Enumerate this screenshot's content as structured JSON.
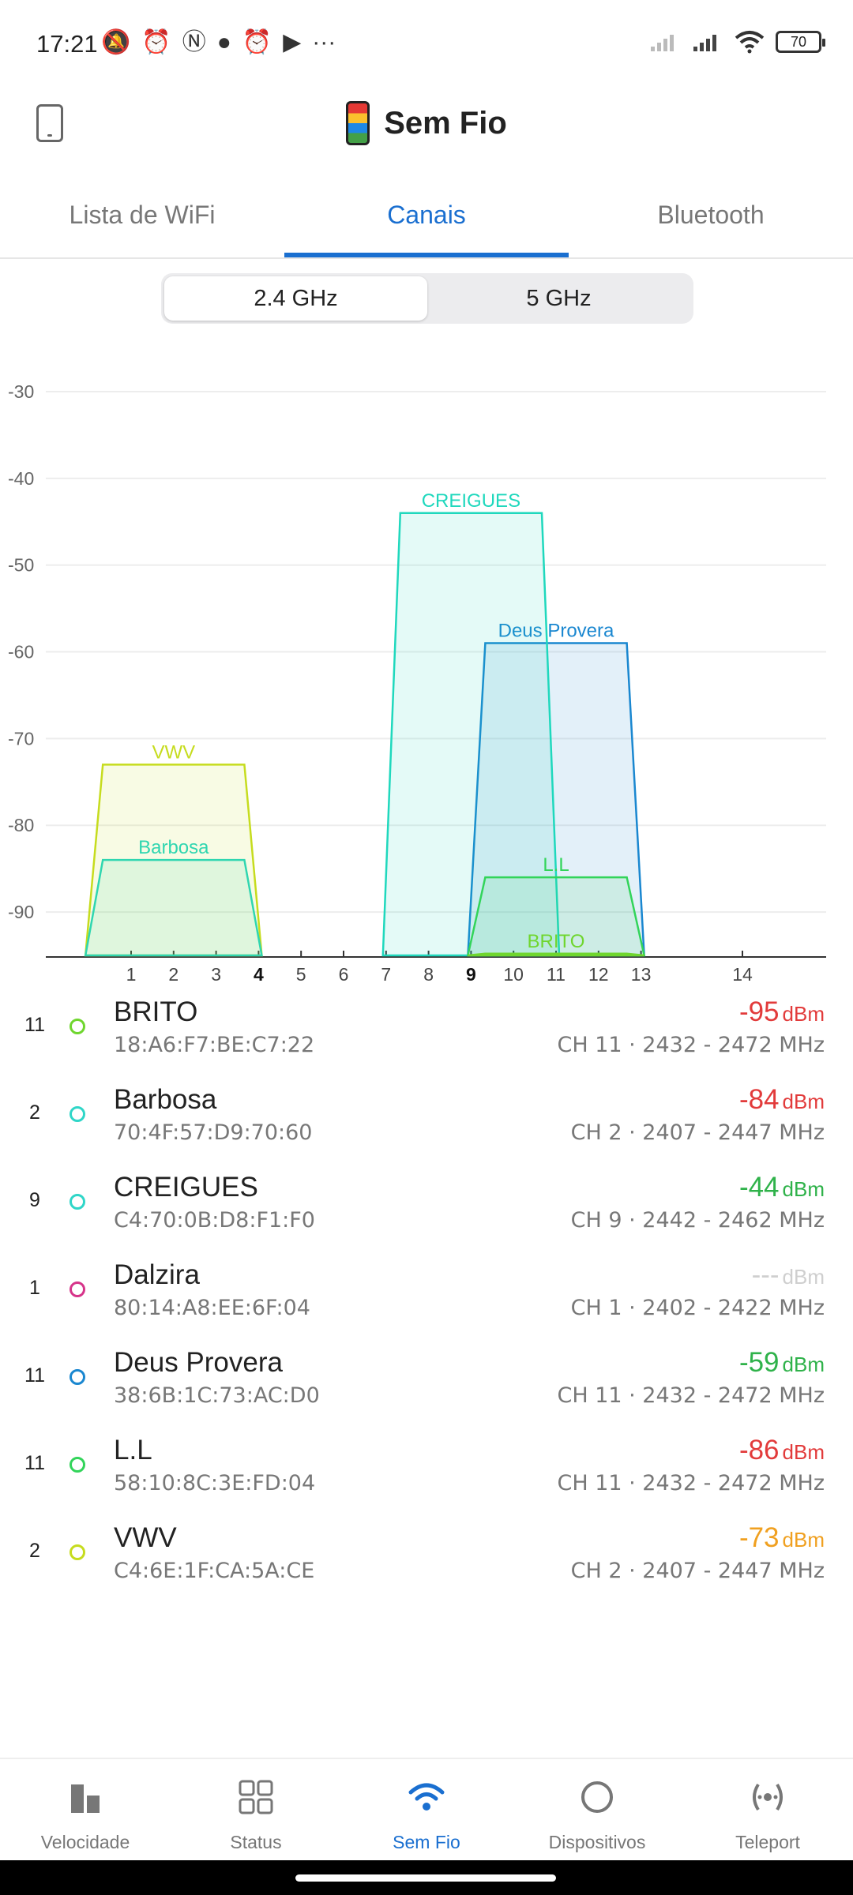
{
  "status_bar": {
    "time": "17:21",
    "left_icons": [
      "mute-icon",
      "alarm-icon",
      "nfc-icon",
      "chat-icon",
      "alarm-icon",
      "youtube-icon",
      "more-icon"
    ],
    "battery": "70"
  },
  "app_bar": {
    "title": "Sem Fio"
  },
  "tabs": [
    {
      "label": "Lista de WiFi",
      "active": false
    },
    {
      "label": "Canais",
      "active": true
    },
    {
      "label": "Bluetooth",
      "active": false
    }
  ],
  "band_toggle": {
    "options": [
      {
        "label": "2.4 GHz",
        "active": true
      },
      {
        "label": "5 GHz",
        "active": false
      }
    ]
  },
  "chart_data": {
    "type": "area",
    "y_ticks": [
      "-30",
      "-40",
      "-50",
      "-60",
      "-70",
      "-80",
      "-90"
    ],
    "ylim": [
      -95,
      -30
    ],
    "x_ticks": [
      "1",
      "2",
      "3",
      "4",
      "5",
      "6",
      "7",
      "8",
      "9",
      "10",
      "11",
      "12",
      "13",
      "14"
    ],
    "bold_x_ticks": [
      "4",
      "9"
    ],
    "series": [
      {
        "name": "VWV",
        "channel": 2,
        "signal": -73,
        "color": "#c6dc1e"
      },
      {
        "name": "Barbosa",
        "channel": 2,
        "signal": -84,
        "color": "#2fd6b0"
      },
      {
        "name": "Deus Provera",
        "channel": 11,
        "signal": -59,
        "color": "#1a87d0"
      },
      {
        "name": "CREIGUES",
        "channel": 9,
        "signal": -44,
        "color": "#1fd8bd"
      },
      {
        "name": "L.L",
        "channel": 11,
        "signal": -86,
        "color": "#32d45a"
      },
      {
        "name": "BRITO",
        "channel": 11,
        "signal": -95,
        "color": "#6fd62e"
      }
    ]
  },
  "networks": [
    {
      "channel": "11",
      "name": "BRITO",
      "mac": "18:A6:F7:BE:C7:22",
      "signal": "-95",
      "unit": "dBm",
      "freq": "CH 11 · 2432 - 2472 MHz",
      "dot_color": "#6fd62e",
      "signal_color": "#e23b3b"
    },
    {
      "channel": "2",
      "name": "Barbosa",
      "mac": "70:4F:57:D9:70:60",
      "signal": "-84",
      "unit": "dBm",
      "freq": "CH 2 · 2407 - 2447 MHz",
      "dot_color": "#2fd6c8",
      "signal_color": "#e23b3b"
    },
    {
      "channel": "9",
      "name": "CREIGUES",
      "mac": "C4:70:0B:D8:F1:F0",
      "signal": "-44",
      "unit": "dBm",
      "freq": "CH 9 · 2442 - 2462 MHz",
      "dot_color": "#2fd6c8",
      "signal_color": "#2fb24a"
    },
    {
      "channel": "1",
      "name": "Dalzira",
      "mac": "80:14:A8:EE:6F:04",
      "signal": "---",
      "unit": "dBm",
      "freq": "CH 1 · 2402 - 2422 MHz",
      "dot_color": "#d6348a",
      "signal_color": "#cfcfcf"
    },
    {
      "channel": "11",
      "name": "Deus Provera",
      "mac": "38:6B:1C:73:AC:D0",
      "signal": "-59",
      "unit": "dBm",
      "freq": "CH 11 · 2432 - 2472 MHz",
      "dot_color": "#1a87d0",
      "signal_color": "#2fb24a"
    },
    {
      "channel": "11",
      "name": "L.L",
      "mac": "58:10:8C:3E:FD:04",
      "signal": "-86",
      "unit": "dBm",
      "freq": "CH 11 · 2432 - 2472 MHz",
      "dot_color": "#32d45a",
      "signal_color": "#e23b3b"
    },
    {
      "channel": "2",
      "name": "VWV",
      "mac": "C4:6E:1F:CA:5A:CE",
      "signal": "-73",
      "unit": "dBm",
      "freq": "CH 2 · 2407 - 2447 MHz",
      "dot_color": "#c6dc1e",
      "signal_color": "#f0a020"
    }
  ],
  "bottom_nav": [
    {
      "label": "Velocidade",
      "icon": "speed-bars-icon",
      "active": false
    },
    {
      "label": "Status",
      "icon": "grid-icon",
      "active": false
    },
    {
      "label": "Sem Fio",
      "icon": "wifi-icon",
      "active": true
    },
    {
      "label": "Dispositivos",
      "icon": "devices-circle-icon",
      "active": false
    },
    {
      "label": "Teleport",
      "icon": "teleport-icon",
      "active": false
    }
  ]
}
